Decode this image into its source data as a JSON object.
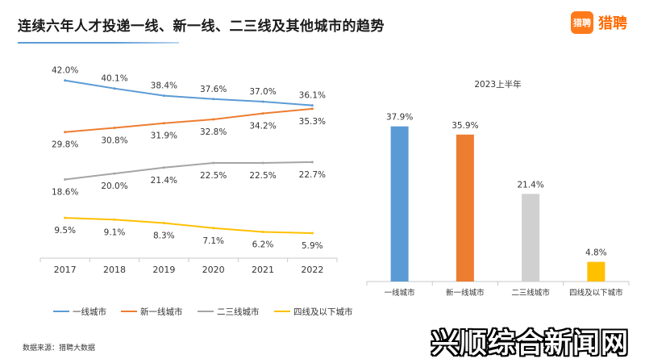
{
  "header": {
    "title": "连续六年人才投递一线、新一线、二三线及其他城市的趋势",
    "logo_mark": "猎聘",
    "logo_text": "猎聘"
  },
  "source": "数据来源：猎聘大数据",
  "watermark": "兴顺综合新闻网",
  "chart_data": [
    {
      "type": "line",
      "categories": [
        "2017",
        "2018",
        "2019",
        "2020",
        "2021",
        "2022"
      ],
      "ylim": [
        0,
        45
      ],
      "legend_position": "bottom",
      "series": [
        {
          "name": "一线城市",
          "color": "#5b9bd5",
          "values": [
            42.0,
            40.1,
            38.4,
            37.6,
            37.0,
            36.1
          ],
          "labels": [
            "42.0%",
            "40.1%",
            "38.4%",
            "37.6%",
            "37.0%",
            "36.1%"
          ],
          "label_pos": "above"
        },
        {
          "name": "新一线城市",
          "color": "#ed7d31",
          "values": [
            29.8,
            30.8,
            31.9,
            32.8,
            34.2,
            35.3
          ],
          "labels": [
            "29.8%",
            "30.8%",
            "31.9%",
            "32.8%",
            "34.2%",
            "35.3%"
          ],
          "label_pos": "below"
        },
        {
          "name": "二三线城市",
          "color": "#a5a5a5",
          "values": [
            18.6,
            20.0,
            21.4,
            22.5,
            22.5,
            22.7
          ],
          "labels": [
            "18.6%",
            "20.0%",
            "21.4%",
            "22.5%",
            "22.5%",
            "22.7%"
          ],
          "label_pos": "below"
        },
        {
          "name": "四线及以下城市",
          "color": "#ffc000",
          "values": [
            9.5,
            9.1,
            8.3,
            7.1,
            6.2,
            5.9
          ],
          "labels": [
            "9.5%",
            "9.1%",
            "8.3%",
            "7.1%",
            "6.2%",
            "5.9%"
          ],
          "label_pos": "below"
        }
      ]
    },
    {
      "type": "bar",
      "title": "2023上半年",
      "categories": [
        "一线城市",
        "新一线城市",
        "二三线城市",
        "四线及以下城市"
      ],
      "values": [
        37.9,
        35.9,
        21.4,
        4.8
      ],
      "labels": [
        "37.9%",
        "35.9%",
        "21.4%",
        "4.8%"
      ],
      "colors": [
        "#5b9bd5",
        "#ed7d31",
        "#d0d0d0",
        "#ffc000"
      ],
      "ylim": [
        0,
        40
      ]
    }
  ]
}
